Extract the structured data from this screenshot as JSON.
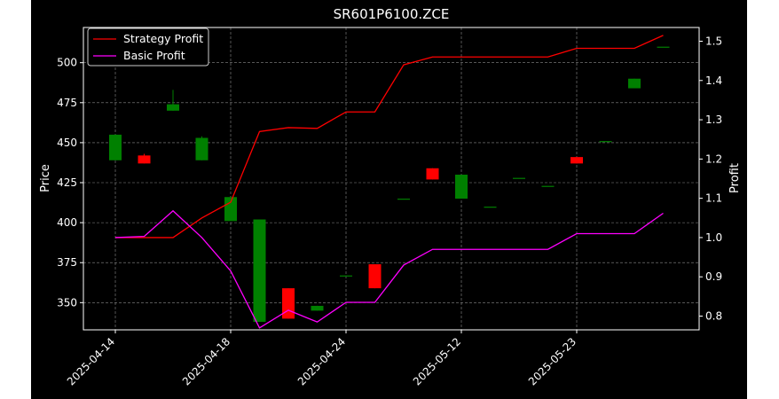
{
  "chart_data": {
    "type": "candlestick",
    "title": "SR601P6100.ZCE",
    "ylabel_left": "Price",
    "ylabel_right": "Profit",
    "ylim_left": [
      333,
      522
    ],
    "ylim_right": [
      0.765,
      1.535
    ],
    "left_ticks": [
      350,
      375,
      400,
      425,
      450,
      475,
      500
    ],
    "right_ticks": [
      0.8,
      0.9,
      1.0,
      1.1,
      1.2,
      1.3,
      1.4,
      1.5
    ],
    "x_tick_labels": [
      {
        "index": 0,
        "label": "2025-04-14"
      },
      {
        "index": 4,
        "label": "2025-04-18"
      },
      {
        "index": 8,
        "label": "2025-04-24"
      },
      {
        "index": 12,
        "label": "2025-05-12"
      },
      {
        "index": 16,
        "label": "2025-05-23"
      }
    ],
    "grid": true,
    "legend_position": "top-left",
    "colors": {
      "up": "#008000",
      "down": "#ff0000",
      "strategy": "#ff0000",
      "basic": "#ff00ff"
    },
    "candles": [
      {
        "open": 439,
        "close": 455,
        "high": 455,
        "low": 439
      },
      {
        "open": 442,
        "close": 437,
        "high": 443,
        "low": 437
      },
      {
        "open": 470,
        "close": 474,
        "high": 483,
        "low": 470
      },
      {
        "open": 439,
        "close": 453,
        "high": 454,
        "low": 439
      },
      {
        "open": 401,
        "close": 416,
        "high": 416,
        "low": 401
      },
      {
        "open": 338,
        "close": 402,
        "high": 402,
        "low": 338
      },
      {
        "open": 359,
        "close": 340,
        "high": 359,
        "low": 340
      },
      {
        "open": 345,
        "close": 348,
        "high": 348,
        "low": 345
      },
      {
        "open": 367,
        "close": 367,
        "high": 367,
        "low": 367
      },
      {
        "open": 374,
        "close": 359,
        "high": 374,
        "low": 359
      },
      {
        "open": 415,
        "close": 415,
        "high": 415,
        "low": 415
      },
      {
        "open": 434,
        "close": 427,
        "high": 434,
        "low": 427
      },
      {
        "open": 415,
        "close": 430,
        "high": 430,
        "low": 415
      },
      {
        "open": 410,
        "close": 410,
        "high": 410,
        "low": 410
      },
      {
        "open": 428,
        "close": 428,
        "high": 428,
        "low": 428
      },
      {
        "open": 423,
        "close": 423,
        "high": 423,
        "low": 423
      },
      {
        "open": 441,
        "close": 437,
        "high": 441,
        "low": 437
      },
      {
        "open": 451,
        "close": 451,
        "high": 451,
        "low": 451
      },
      {
        "open": 484,
        "close": 490,
        "high": 490,
        "low": 484
      },
      {
        "open": 510,
        "close": 510,
        "high": 510,
        "low": 510
      }
    ],
    "series": [
      {
        "name": "Strategy Profit",
        "axis": "right",
        "values": [
          1.0,
          1.0,
          1.0,
          1.05,
          1.09,
          1.27,
          1.28,
          1.278,
          1.32,
          1.32,
          1.44,
          1.46,
          1.46,
          1.46,
          1.46,
          1.46,
          1.482,
          1.482,
          1.482,
          1.515
        ]
      },
      {
        "name": "Basic Profit",
        "axis": "right",
        "values": [
          1.0,
          1.003,
          1.068,
          1.0,
          0.915,
          0.77,
          0.815,
          0.785,
          0.835,
          0.835,
          0.93,
          0.97,
          0.97,
          0.97,
          0.97,
          0.97,
          1.01,
          1.01,
          1.01,
          1.062
        ]
      }
    ]
  }
}
